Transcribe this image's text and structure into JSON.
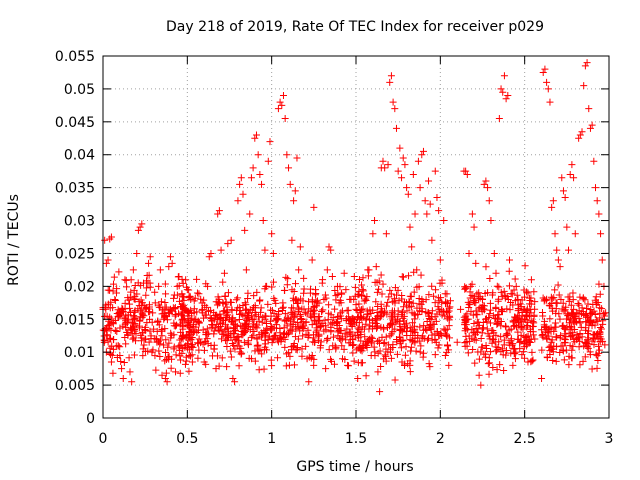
{
  "chart_data": {
    "type": "scatter",
    "title": "Day 218 of 2019, Rate Of TEC Index for receiver p029",
    "xlabel": "GPS time / hours",
    "ylabel": "ROTI / TECUs",
    "xlim": [
      0,
      3
    ],
    "ylim": [
      0,
      0.055
    ],
    "xticks": [
      0,
      0.5,
      1,
      1.5,
      2,
      2.5,
      3
    ],
    "xtick_labels": [
      "0",
      "0.5",
      "1",
      "1.5",
      "2",
      "2.5",
      "3"
    ],
    "yticks": [
      0,
      0.005,
      0.01,
      0.015,
      0.02,
      0.025,
      0.03,
      0.035,
      0.04,
      0.045,
      0.05,
      0.055
    ],
    "ytick_labels": [
      "0",
      "0.005",
      "0.01",
      "0.015",
      "0.02",
      "0.025",
      "0.03",
      "0.035",
      "0.04",
      "0.045",
      "0.05",
      "0.055"
    ],
    "grid": true,
    "marker": "+",
    "marker_color": "#ff0000",
    "series": [
      {
        "name": "ROTI",
        "points": [
          [
            0.0,
            0.0165
          ],
          [
            0.01,
            0.027
          ],
          [
            0.02,
            0.0235
          ],
          [
            0.03,
            0.024
          ],
          [
            0.04,
            0.0272
          ],
          [
            0.05,
            0.0275
          ],
          [
            0.02,
            0.01
          ],
          [
            0.04,
            0.012
          ],
          [
            0.05,
            0.0085
          ],
          [
            0.06,
            0.0145
          ],
          [
            0.07,
            0.018
          ],
          [
            0.08,
            0.019
          ],
          [
            0.09,
            0.011
          ],
          [
            0.1,
            0.0095
          ],
          [
            0.11,
            0.0075
          ],
          [
            0.12,
            0.006
          ],
          [
            0.13,
            0.021
          ],
          [
            0.14,
            0.013
          ],
          [
            0.15,
            0.015
          ],
          [
            0.16,
            0.007
          ],
          [
            0.17,
            0.0055
          ],
          [
            0.18,
            0.0225
          ],
          [
            0.19,
            0.018
          ],
          [
            0.2,
            0.025
          ],
          [
            0.21,
            0.0285
          ],
          [
            0.22,
            0.029
          ],
          [
            0.23,
            0.0295
          ],
          [
            0.24,
            0.0205
          ],
          [
            0.25,
            0.012
          ],
          [
            0.26,
            0.0145
          ],
          [
            0.27,
            0.0235
          ],
          [
            0.28,
            0.0245
          ],
          [
            0.29,
            0.01
          ],
          [
            0.3,
            0.0135
          ],
          [
            0.31,
            0.0175
          ],
          [
            0.32,
            0.0115
          ],
          [
            0.33,
            0.02
          ],
          [
            0.34,
            0.0225
          ],
          [
            0.35,
            0.0065
          ],
          [
            0.36,
            0.015
          ],
          [
            0.37,
            0.006
          ],
          [
            0.38,
            0.0055
          ],
          [
            0.39,
            0.023
          ],
          [
            0.4,
            0.0245
          ],
          [
            0.41,
            0.0235
          ],
          [
            0.42,
            0.0105
          ],
          [
            0.43,
            0.007
          ],
          [
            0.44,
            0.02
          ],
          [
            0.45,
            0.0215
          ],
          [
            0.46,
            0.013
          ],
          [
            0.47,
            0.0125
          ],
          [
            0.48,
            0.0155
          ],
          [
            0.49,
            0.021
          ],
          [
            0.5,
            0.0195
          ],
          [
            0.51,
            0.0095
          ],
          [
            0.52,
            0.018
          ],
          [
            0.53,
            0.0085
          ],
          [
            0.54,
            0.016
          ],
          [
            0.55,
            0.015
          ],
          [
            0.56,
            0.019
          ],
          [
            0.57,
            0.012
          ],
          [
            0.58,
            0.0115
          ],
          [
            0.59,
            0.0165
          ],
          [
            0.6,
            0.0085
          ],
          [
            0.61,
            0.013
          ],
          [
            0.62,
            0.02
          ],
          [
            0.63,
            0.0245
          ],
          [
            0.64,
            0.025
          ],
          [
            0.65,
            0.014
          ],
          [
            0.66,
            0.0105
          ],
          [
            0.67,
            0.0075
          ],
          [
            0.68,
            0.031
          ],
          [
            0.69,
            0.0315
          ],
          [
            0.7,
            0.0255
          ],
          [
            0.71,
            0.0175
          ],
          [
            0.72,
            0.022
          ],
          [
            0.73,
            0.016
          ],
          [
            0.74,
            0.0265
          ],
          [
            0.75,
            0.015
          ],
          [
            0.76,
            0.027
          ],
          [
            0.77,
            0.006
          ],
          [
            0.78,
            0.0055
          ],
          [
            0.79,
            0.012
          ],
          [
            0.8,
            0.033
          ],
          [
            0.81,
            0.0355
          ],
          [
            0.82,
            0.0365
          ],
          [
            0.83,
            0.034
          ],
          [
            0.84,
            0.0285
          ],
          [
            0.85,
            0.0225
          ],
          [
            0.86,
            0.016
          ],
          [
            0.87,
            0.031
          ],
          [
            0.88,
            0.0365
          ],
          [
            0.89,
            0.038
          ],
          [
            0.9,
            0.0425
          ],
          [
            0.91,
            0.043
          ],
          [
            0.92,
            0.04
          ],
          [
            0.93,
            0.037
          ],
          [
            0.94,
            0.0355
          ],
          [
            0.95,
            0.03
          ],
          [
            0.96,
            0.0255
          ],
          [
            0.97,
            0.02
          ],
          [
            0.98,
            0.039
          ],
          [
            0.99,
            0.042
          ],
          [
            1.0,
            0.028
          ],
          [
            1.01,
            0.025
          ],
          [
            1.02,
            0.0125
          ],
          [
            1.03,
            0.015
          ],
          [
            1.04,
            0.047
          ],
          [
            1.05,
            0.048
          ],
          [
            1.06,
            0.0475
          ],
          [
            1.07,
            0.049
          ],
          [
            1.08,
            0.0455
          ],
          [
            1.09,
            0.04
          ],
          [
            1.1,
            0.038
          ],
          [
            1.11,
            0.0355
          ],
          [
            1.12,
            0.027
          ],
          [
            1.13,
            0.033
          ],
          [
            1.14,
            0.0345
          ],
          [
            1.15,
            0.0395
          ],
          [
            1.16,
            0.0225
          ],
          [
            1.17,
            0.026
          ],
          [
            1.18,
            0.0105
          ],
          [
            1.19,
            0.014
          ],
          [
            1.2,
            0.016
          ],
          [
            1.21,
            0.009
          ],
          [
            1.22,
            0.0055
          ],
          [
            1.23,
            0.0155
          ],
          [
            1.24,
            0.024
          ],
          [
            1.25,
            0.032
          ],
          [
            1.26,
            0.0195
          ],
          [
            1.27,
            0.0175
          ],
          [
            1.28,
            0.0125
          ],
          [
            1.29,
            0.011
          ],
          [
            1.3,
            0.0205
          ],
          [
            1.31,
            0.018
          ],
          [
            1.32,
            0.0075
          ],
          [
            1.33,
            0.0225
          ],
          [
            1.34,
            0.026
          ],
          [
            1.35,
            0.0255
          ],
          [
            1.36,
            0.0215
          ],
          [
            1.37,
            0.0145
          ],
          [
            1.38,
            0.0105
          ],
          [
            1.39,
            0.02
          ],
          [
            1.4,
            0.0175
          ],
          [
            1.41,
            0.016
          ],
          [
            1.42,
            0.009
          ],
          [
            1.43,
            0.022
          ],
          [
            1.44,
            0.0195
          ],
          [
            1.45,
            0.008
          ],
          [
            1.46,
            0.013
          ],
          [
            1.47,
            0.018
          ],
          [
            1.48,
            0.012
          ],
          [
            1.49,
            0.0215
          ],
          [
            1.5,
            0.0165
          ],
          [
            1.51,
            0.006
          ],
          [
            1.52,
            0.0145
          ],
          [
            1.53,
            0.0105
          ],
          [
            1.54,
            0.0195
          ],
          [
            1.55,
            0.0135
          ],
          [
            1.56,
            0.011
          ],
          [
            1.57,
            0.0225
          ],
          [
            1.58,
            0.015
          ],
          [
            1.59,
            0.0095
          ],
          [
            1.6,
            0.028
          ],
          [
            1.61,
            0.03
          ],
          [
            1.62,
            0.023
          ],
          [
            1.63,
            0.007
          ],
          [
            1.64,
            0.004
          ],
          [
            1.65,
            0.038
          ],
          [
            1.66,
            0.039
          ],
          [
            1.67,
            0.038
          ],
          [
            1.68,
            0.028
          ],
          [
            1.69,
            0.0385
          ],
          [
            1.7,
            0.051
          ],
          [
            1.71,
            0.052
          ],
          [
            1.72,
            0.048
          ],
          [
            1.73,
            0.047
          ],
          [
            1.74,
            0.044
          ],
          [
            1.75,
            0.0375
          ],
          [
            1.76,
            0.041
          ],
          [
            1.77,
            0.0365
          ],
          [
            1.78,
            0.0395
          ],
          [
            1.79,
            0.0385
          ],
          [
            1.8,
            0.035
          ],
          [
            1.81,
            0.034
          ],
          [
            1.82,
            0.029
          ],
          [
            1.83,
            0.026
          ],
          [
            1.84,
            0.037
          ],
          [
            1.85,
            0.031
          ],
          [
            1.86,
            0.0225
          ],
          [
            1.87,
            0.039
          ],
          [
            1.88,
            0.035
          ],
          [
            1.89,
            0.04
          ],
          [
            1.9,
            0.0405
          ],
          [
            1.91,
            0.033
          ],
          [
            1.92,
            0.031
          ],
          [
            1.93,
            0.036
          ],
          [
            1.94,
            0.0325
          ],
          [
            1.95,
            0.027
          ],
          [
            1.96,
            0.0185
          ],
          [
            1.97,
            0.0375
          ],
          [
            1.98,
            0.0335
          ],
          [
            1.99,
            0.0315
          ],
          [
            2.0,
            0.024
          ],
          [
            2.01,
            0.0205
          ],
          [
            2.02,
            0.03
          ],
          [
            2.03,
            0.0095
          ],
          [
            2.04,
            0.0175
          ],
          [
            2.05,
            0.008
          ],
          [
            2.1,
            0.0115
          ],
          [
            2.12,
            0.0165
          ],
          [
            2.14,
            0.0375
          ],
          [
            2.15,
            0.0375
          ],
          [
            2.16,
            0.037
          ],
          [
            2.17,
            0.025
          ],
          [
            2.18,
            0.02
          ],
          [
            2.19,
            0.031
          ],
          [
            2.2,
            0.029
          ],
          [
            2.21,
            0.0235
          ],
          [
            2.22,
            0.013
          ],
          [
            2.23,
            0.0065
          ],
          [
            2.24,
            0.005
          ],
          [
            2.25,
            0.018
          ],
          [
            2.26,
            0.0355
          ],
          [
            2.27,
            0.036
          ],
          [
            2.28,
            0.035
          ],
          [
            2.29,
            0.033
          ],
          [
            2.3,
            0.03
          ],
          [
            2.31,
            0.012
          ],
          [
            2.32,
            0.025
          ],
          [
            2.33,
            0.022
          ],
          [
            2.34,
            0.015
          ],
          [
            2.35,
            0.0455
          ],
          [
            2.36,
            0.05
          ],
          [
            2.37,
            0.0495
          ],
          [
            2.38,
            0.052
          ],
          [
            2.39,
            0.0485
          ],
          [
            2.4,
            0.049
          ],
          [
            2.41,
            0.024
          ],
          [
            2.42,
            0.0135
          ],
          [
            2.43,
            0.008
          ],
          [
            2.44,
            0.0105
          ],
          [
            2.45,
            0.02
          ],
          [
            2.46,
            0.018
          ],
          [
            2.47,
            0.0115
          ],
          [
            2.48,
            0.015
          ],
          [
            2.49,
            0.0135
          ],
          [
            2.5,
            0.0165
          ],
          [
            2.52,
            0.019
          ],
          [
            2.54,
            0.021
          ],
          [
            2.56,
            0.012
          ],
          [
            2.6,
            0.006
          ],
          [
            2.61,
            0.0525
          ],
          [
            2.62,
            0.053
          ],
          [
            2.63,
            0.051
          ],
          [
            2.64,
            0.05
          ],
          [
            2.65,
            0.048
          ],
          [
            2.66,
            0.032
          ],
          [
            2.67,
            0.033
          ],
          [
            2.68,
            0.028
          ],
          [
            2.69,
            0.0255
          ],
          [
            2.7,
            0.024
          ],
          [
            2.71,
            0.023
          ],
          [
            2.72,
            0.0365
          ],
          [
            2.73,
            0.0345
          ],
          [
            2.74,
            0.0335
          ],
          [
            2.75,
            0.029
          ],
          [
            2.76,
            0.0255
          ],
          [
            2.77,
            0.037
          ],
          [
            2.78,
            0.0385
          ],
          [
            2.79,
            0.0365
          ],
          [
            2.8,
            0.028
          ],
          [
            2.81,
            0.016
          ],
          [
            2.82,
            0.0425
          ],
          [
            2.83,
            0.043
          ],
          [
            2.84,
            0.0435
          ],
          [
            2.85,
            0.0505
          ],
          [
            2.86,
            0.0535
          ],
          [
            2.87,
            0.054
          ],
          [
            2.88,
            0.047
          ],
          [
            2.89,
            0.044
          ],
          [
            2.9,
            0.0445
          ],
          [
            2.91,
            0.039
          ],
          [
            2.92,
            0.035
          ],
          [
            2.93,
            0.033
          ],
          [
            2.94,
            0.031
          ],
          [
            2.95,
            0.028
          ],
          [
            2.96,
            0.024
          ],
          [
            2.97,
            0.02
          ],
          [
            2.98,
            0.016
          ]
        ],
        "bands": [
          {
            "x0": 0.0,
            "x1": 0.55,
            "ymin": 0.005,
            "ymax": 0.024,
            "count": 330
          },
          {
            "x0": 0.45,
            "x1": 1.0,
            "ymin": 0.006,
            "ymax": 0.022,
            "count": 330
          },
          {
            "x0": 1.0,
            "x1": 1.55,
            "ymin": 0.006,
            "ymax": 0.023,
            "count": 340
          },
          {
            "x0": 1.55,
            "x1": 2.06,
            "ymin": 0.005,
            "ymax": 0.024,
            "count": 330
          },
          {
            "x0": 2.14,
            "x1": 2.56,
            "ymin": 0.005,
            "ymax": 0.024,
            "count": 300
          },
          {
            "x0": 2.6,
            "x1": 2.98,
            "ymin": 0.006,
            "ymax": 0.022,
            "count": 260
          }
        ]
      }
    ]
  }
}
